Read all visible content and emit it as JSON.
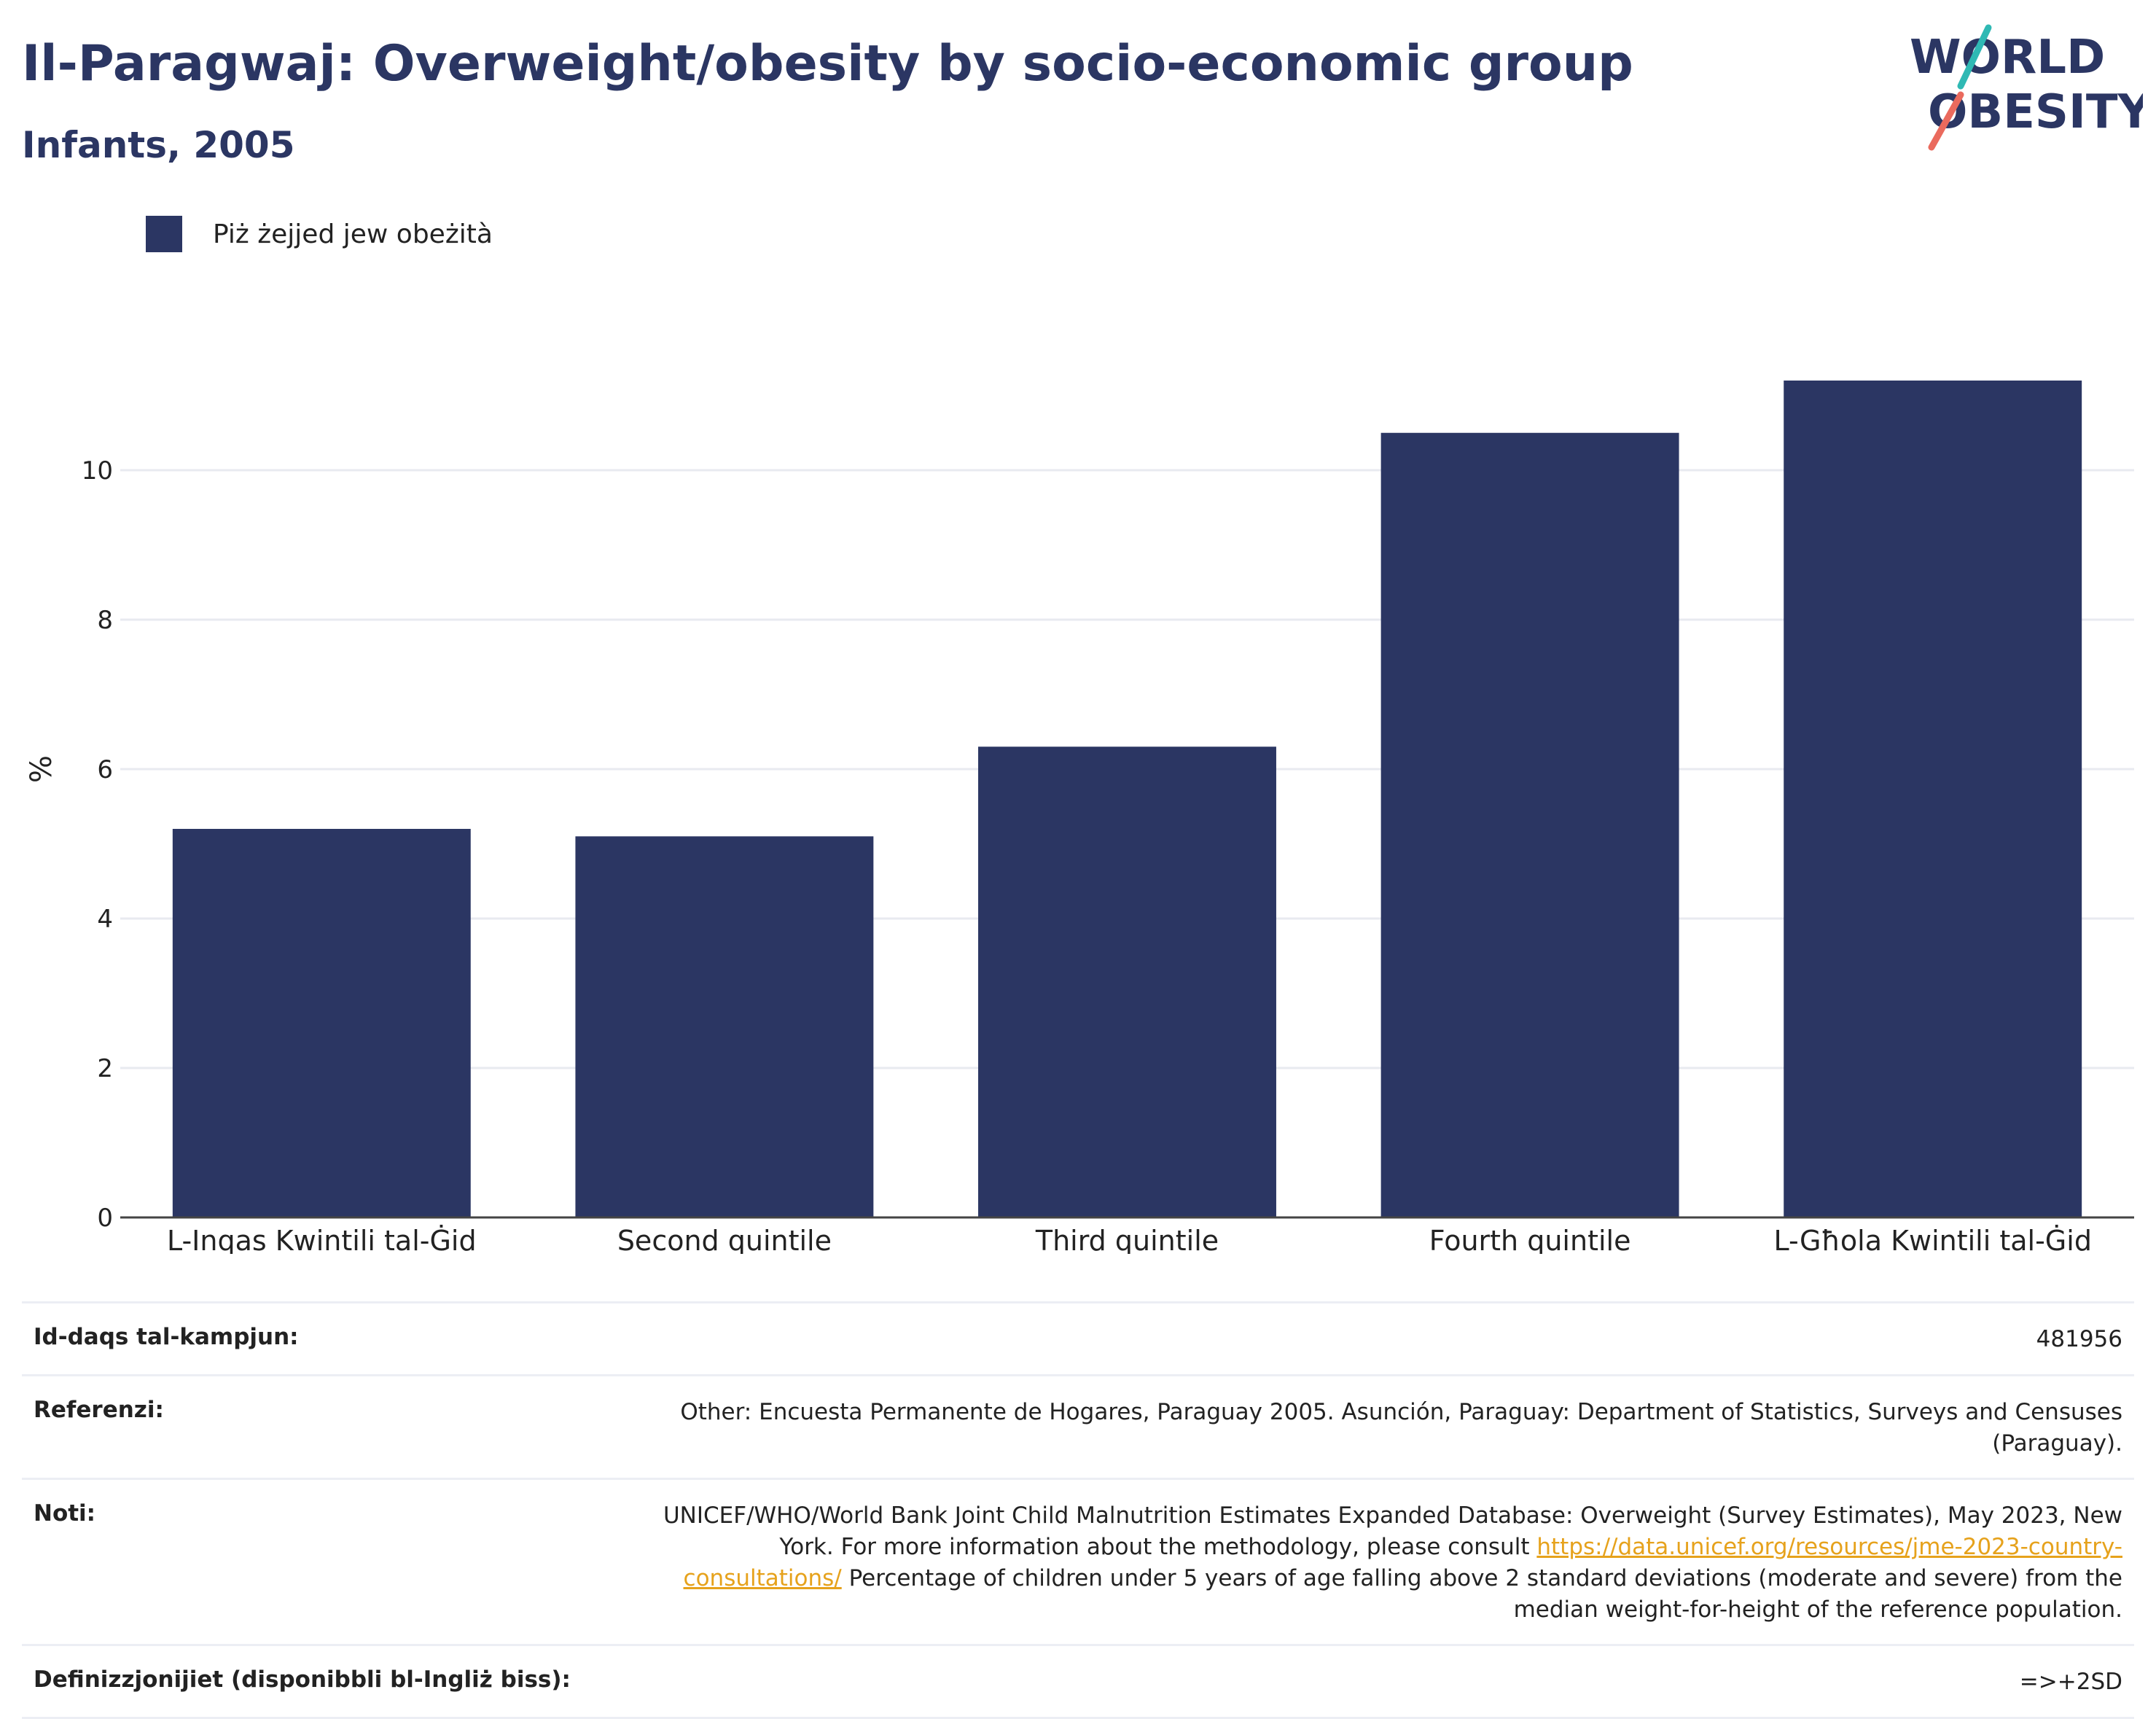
{
  "header": {
    "title": "Il-Paragwaj: Overweight/obesity by socio-economic group",
    "subtitle": "Infants, 2005"
  },
  "logo": {
    "line1": "WORLD",
    "line2": "OBESITY",
    "icon": "world-obesity-logo"
  },
  "legend": {
    "label": "Piż żejjed jew obeżità",
    "color": "#2b3663"
  },
  "chart_data": {
    "type": "bar",
    "title": "Il-Paragwaj: Overweight/obesity by socio-economic group",
    "subtitle": "Infants, 2005",
    "ylabel": "%",
    "categories": [
      "L-Inqas Kwintili tal-Ġid",
      "Second quintile",
      "Third quintile",
      "Fourth quintile",
      "L-Għola Kwintili tal-Ġid"
    ],
    "series": [
      {
        "name": "Piż żejjed jew obeżità",
        "values": [
          5.2,
          5.1,
          6.3,
          10.5,
          11.2
        ],
        "color": "#2b3663"
      }
    ],
    "ylim": [
      0,
      12
    ],
    "yticks": [
      0,
      2,
      4,
      6,
      8,
      10
    ],
    "grid": true,
    "legend_position": "top-left"
  },
  "meta": {
    "sample_label": "Id-daqs tal-kampjun:",
    "sample_value": "481956",
    "references_label": "Referenzi:",
    "references_value": "Other: Encuesta Permanente de Hogares, Paraguay 2005. Asunción, Paraguay: Department of Statistics, Surveys and Censuses (Paraguay).",
    "notes_label": "Noti:",
    "notes_text1": "UNICEF/WHO/World Bank Joint Child Malnutrition Estimates Expanded Database: Overweight (Survey Estimates), May 2023, New York. For more information about the methodology, please consult ",
    "notes_link": "https://data.unicef.org/resources/jme-2023-country-consultations/",
    "notes_text2": " Percentage of children under 5 years of age falling above 2 standard deviations (moderate and severe) from the median weight-for-height of the reference population.",
    "definitions_label": "Definizzjonijiet (disponibbli bl-Ingliż biss):",
    "definitions_value": "=>+2SD"
  }
}
